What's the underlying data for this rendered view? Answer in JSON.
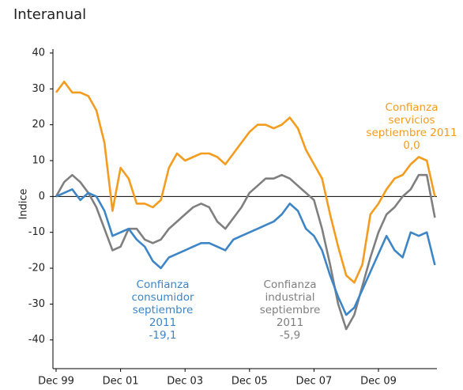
{
  "chart_data": {
    "type": "line",
    "title": "Interanual",
    "y_label": "Indice",
    "categories": [
      "Dec 99",
      null,
      null,
      null,
      null,
      null,
      null,
      null,
      "Dec 01",
      null,
      null,
      null,
      null,
      null,
      null,
      null,
      "Dec 03",
      null,
      null,
      null,
      null,
      null,
      null,
      null,
      "Dec 05",
      null,
      null,
      null,
      null,
      null,
      null,
      null,
      "Dec 07",
      null,
      null,
      null,
      null,
      null,
      null,
      null,
      "Dec 09",
      null,
      null,
      null,
      null,
      null,
      null,
      null
    ],
    "series": [
      {
        "name": "Confianza servicios",
        "color": "#f39c1f",
        "values": [
          29,
          32,
          29,
          29,
          28,
          24,
          15,
          -4,
          8,
          5,
          -2,
          -2,
          -3,
          -1,
          8,
          12,
          10,
          11,
          12,
          12,
          11,
          9,
          12,
          15,
          18,
          20,
          20,
          19,
          20,
          22,
          19,
          13,
          9,
          5,
          -5,
          -14,
          -22,
          -24,
          -19,
          -5,
          -2,
          2,
          5,
          6,
          9,
          11,
          10,
          0.0
        ]
      },
      {
        "name": "Confianza consumidor",
        "color": "#3d85c6",
        "values": [
          0,
          1,
          2,
          -1,
          1,
          0,
          -4,
          -11,
          -10,
          -9,
          -12,
          -14,
          -18,
          -20,
          -17,
          -16,
          -15,
          -14,
          -13,
          -13,
          -14,
          -15,
          -12,
          -11,
          -10,
          -9,
          -8,
          -7,
          -5,
          -2,
          -4,
          -9,
          -11,
          -15,
          -22,
          -28,
          -33,
          -31,
          -26,
          -21,
          -16,
          -11,
          -15,
          -17,
          -10,
          -11,
          -10,
          -19.1
        ]
      },
      {
        "name": "Confianza industrial",
        "color": "#7f7f7f",
        "values": [
          0,
          4,
          6,
          4,
          1,
          -3,
          -9,
          -15,
          -14,
          -9,
          -9,
          -12,
          -13,
          -12,
          -9,
          -7,
          -5,
          -3,
          -2,
          -3,
          -7,
          -9,
          -6,
          -3,
          1,
          3,
          5,
          5,
          6,
          5,
          3,
          1,
          -1,
          -9,
          -19,
          -30,
          -37,
          -33,
          -25,
          -17,
          -10,
          -5,
          -3,
          0,
          2,
          6,
          6,
          -5.9
        ]
      }
    ],
    "annotations": [
      {
        "lines": [
          "Confianza",
          "servicios",
          "septiembre 2011",
          "0,0"
        ]
      },
      {
        "lines": [
          "Confianza",
          "consumidor",
          "septiembre",
          "2011",
          "-19,1"
        ]
      },
      {
        "lines": [
          "Confianza",
          "industrial",
          "septiembre",
          "2011",
          "-5,9"
        ]
      }
    ],
    "ylim": [
      -48,
      40
    ],
    "yticks": [
      -40,
      -30,
      -20,
      -10,
      0,
      10,
      20,
      30,
      40
    ]
  }
}
